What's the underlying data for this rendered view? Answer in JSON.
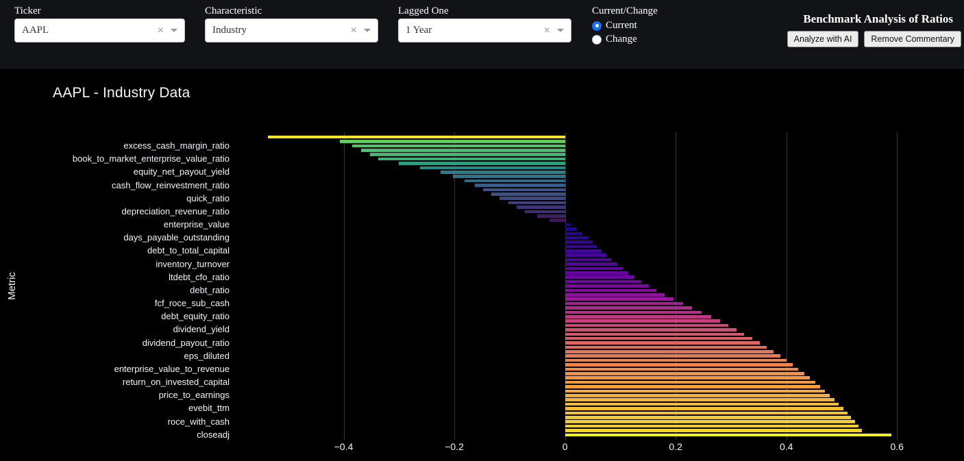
{
  "theme": {
    "background": "#000000",
    "topbar_bg": "#121316",
    "accent": "#1b6fe8",
    "grid_color": "#31363f",
    "text_light": "#f2f5fa"
  },
  "controls": {
    "clear_icon": "×",
    "ticker": {
      "label": "Ticker",
      "value": "AAPL"
    },
    "characteristic": {
      "label": "Characteristic",
      "value": "Industry"
    },
    "lagged": {
      "label": "Lagged One",
      "value": "1 Year"
    },
    "current_change": {
      "label": "Current/Change",
      "options": [
        "Current",
        "Change"
      ],
      "selected": "Current"
    }
  },
  "header": {
    "title": "Benchmark Analysis of Ratios",
    "buttons": [
      {
        "label": "Analyze with AI"
      },
      {
        "label": "Remove Commentary"
      }
    ]
  },
  "chart_data": {
    "type": "bar",
    "orientation": "horizontal",
    "title": "AAPL - Industry Data",
    "xlabel": "",
    "ylabel": "Metric",
    "xlim": [
      -0.6,
      0.7
    ],
    "x_ticks": {
      "values": [
        -0.4,
        -0.2,
        0,
        0.2,
        0.4,
        0.6
      ],
      "labels": [
        "−0.4",
        "−0.2",
        "0",
        "0.2",
        "0.4",
        "0.6"
      ]
    },
    "label_start_index": 2,
    "labeled_every": 3,
    "category_labels": [
      "excess_cash_margin_ratio",
      "book_to_market_enterprise_value_ratio",
      "equity_net_payout_yield",
      "cash_flow_reinvestment_ratio",
      "quick_ratio",
      "depreciation_revenue_ratio",
      "enterprise_value",
      "days_payable_outstanding",
      "debt_to_total_capital",
      "inventory_turnover",
      "ltdebt_cfo_ratio",
      "debt_ratio",
      "fcf_roce_sub_cash",
      "debt_equity_ratio",
      "dividend_yield",
      "dividend_payout_ratio",
      "eps_diluted",
      "enterprise_value_to_revenue",
      "return_on_invested_capital",
      "price_to_earnings",
      "evebit_ttm",
      "roce_with_cash",
      "closeadj"
    ],
    "values": [
      -0.537,
      -0.407,
      -0.385,
      -0.368,
      -0.352,
      -0.337,
      -0.3,
      -0.262,
      -0.225,
      -0.203,
      -0.182,
      -0.163,
      -0.148,
      -0.133,
      -0.118,
      -0.102,
      -0.087,
      -0.072,
      -0.05,
      -0.028,
      0.012,
      0.022,
      0.032,
      0.042,
      0.05,
      0.058,
      0.066,
      0.075,
      0.084,
      0.094,
      0.104,
      0.115,
      0.126,
      0.138,
      0.151,
      0.165,
      0.18,
      0.196,
      0.213,
      0.23,
      0.247,
      0.264,
      0.28,
      0.295,
      0.31,
      0.324,
      0.338,
      0.352,
      0.365,
      0.377,
      0.389,
      0.4,
      0.411,
      0.422,
      0.432,
      0.442,
      0.452,
      0.461,
      0.47,
      0.479,
      0.487,
      0.495,
      0.503,
      0.51,
      0.517,
      0.524,
      0.53,
      0.536,
      0.59
    ],
    "colormap_negative": [
      "#440154",
      "#3b528b",
      "#21918c",
      "#5ec962",
      "#fde725"
    ],
    "colormap_positive": [
      "#0d0887",
      "#7e03a8",
      "#cc4778",
      "#f89540",
      "#f0f921"
    ],
    "legend": "none",
    "grid": "vertical-only"
  }
}
